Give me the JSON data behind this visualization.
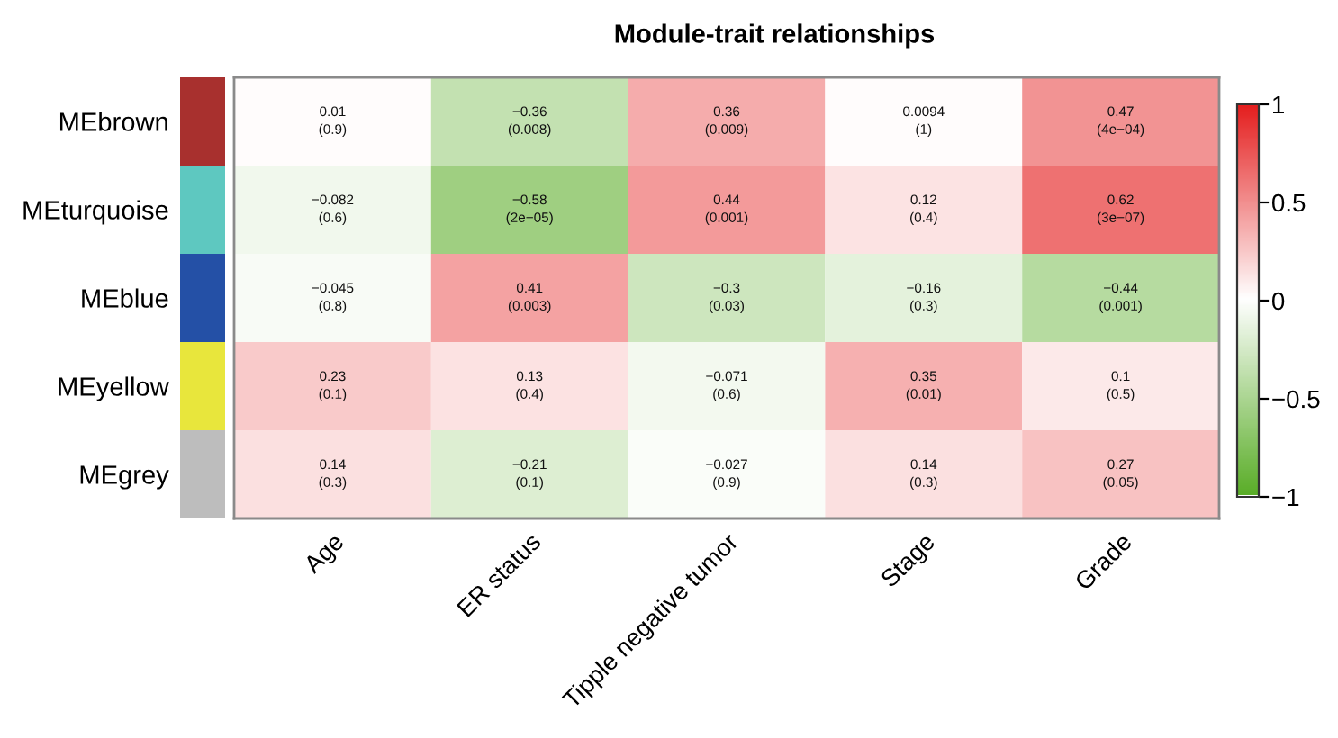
{
  "chart_data": {
    "type": "heatmap",
    "title": "Module-trait relationships",
    "categories": [
      "Age",
      "ER status",
      "Tipple negative tumor",
      "Stage",
      "Grade"
    ],
    "y_categories": [
      "MEbrown",
      "MEturquoise",
      "MEblue",
      "MEyellow",
      "MEgrey"
    ],
    "cells": [
      [
        0.01,
        -0.36,
        0.36,
        0.0094,
        0.47
      ],
      [
        -0.082,
        -0.58,
        0.44,
        0.12,
        0.62
      ],
      [
        -0.045,
        0.41,
        -0.3,
        -0.16,
        -0.44
      ],
      [
        0.23,
        0.13,
        -0.071,
        0.35,
        0.1
      ],
      [
        0.14,
        -0.21,
        -0.027,
        0.14,
        0.27
      ]
    ],
    "cell_labels": [
      [
        "0.01\n(0.9)",
        "−0.36\n(0.008)",
        "0.36\n(0.009)",
        "0.0094\n(1)",
        "0.47\n(4e−04)"
      ],
      [
        "−0.082\n(0.6)",
        "−0.58\n(2e−05)",
        "0.44\n(0.001)",
        "0.12\n(0.4)",
        "0.62\n(3e−07)"
      ],
      [
        "−0.045\n(0.8)",
        "0.41\n(0.003)",
        "−0.3\n(0.03)",
        "−0.16\n(0.3)",
        "−0.44\n(0.001)"
      ],
      [
        "0.23\n(0.1)",
        "0.13\n(0.4)",
        "−0.071\n(0.6)",
        "0.35\n(0.01)",
        "0.1\n(0.5)"
      ],
      [
        "0.14\n(0.3)",
        "−0.21\n(0.1)",
        "−0.027\n(0.9)",
        "0.14\n(0.3)",
        "0.27\n(0.05)"
      ]
    ],
    "clim": [
      -1,
      1
    ],
    "cticks": [
      {
        "value": 1,
        "label": "1"
      },
      {
        "value": 0.5,
        "label": "0.5"
      },
      {
        "value": 0,
        "label": "0"
      },
      {
        "value": -0.5,
        "label": "−0.5"
      },
      {
        "value": -1,
        "label": "−1"
      }
    ]
  }
}
